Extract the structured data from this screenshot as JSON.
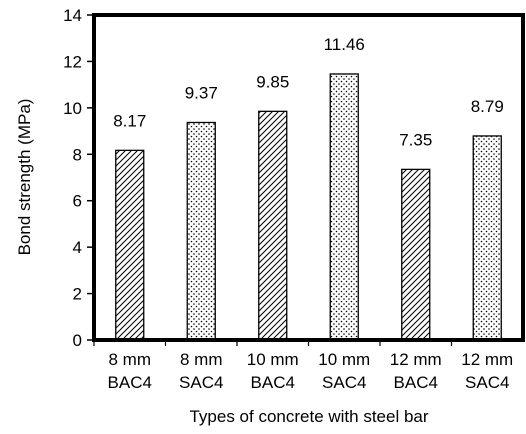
{
  "chart_data": {
    "type": "bar",
    "categories": [
      [
        "8 mm",
        "BAC4"
      ],
      [
        "8 mm",
        "SAC4"
      ],
      [
        "10 mm",
        "BAC4"
      ],
      [
        "10 mm",
        "SAC4"
      ],
      [
        "12 mm",
        "BAC4"
      ],
      [
        "12 mm",
        "SAC4"
      ]
    ],
    "values": [
      8.17,
      9.37,
      9.85,
      11.46,
      7.35,
      8.79
    ],
    "value_labels": [
      "8.17",
      "9.37",
      "9.85",
      "11.46",
      "7.35",
      "8.79"
    ],
    "patterns": [
      "hatch",
      "dots",
      "hatch",
      "dots",
      "hatch",
      "dots"
    ],
    "xlabel": "Types of concrete with steel bar",
    "ylabel": "Bond strength (MPa)",
    "ylim": [
      0,
      14
    ],
    "yticks": [
      0,
      2,
      4,
      6,
      8,
      10,
      12,
      14
    ],
    "grid": false,
    "legend": "none",
    "colors": {
      "bar_outline": "#000000",
      "pattern": "#000000",
      "background": "#ffffff"
    }
  }
}
